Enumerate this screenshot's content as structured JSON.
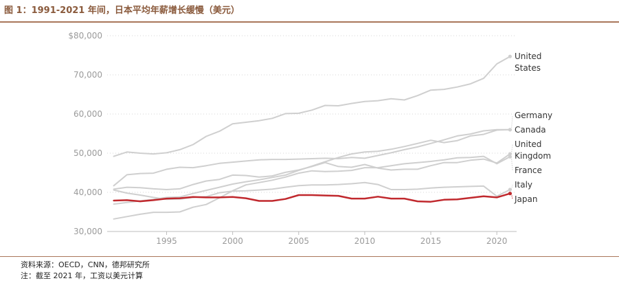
{
  "figure": {
    "title": "图 1：1991-2021 年间，日本平均年薪增长缓慢（美元）",
    "source": "资料来源：OECD，CNN，德邦研究所",
    "note": "注：截至 2021 年，工资以美元计算"
  },
  "colors": {
    "muted": "#cfcfcf",
    "japan": "#c0282d",
    "axis": "#bdbdbd",
    "tick": "#9a9a9a",
    "label": "#333333"
  },
  "chart_data": {
    "type": "line",
    "title": "",
    "xlabel": "",
    "ylabel": "",
    "xlim": [
      1990.5,
      2021.5
    ],
    "ylim": [
      30000,
      80000
    ],
    "grid": true,
    "y_ticks": [
      {
        "value": 30000,
        "label": "30,000"
      },
      {
        "value": 40000,
        "label": "40,000"
      },
      {
        "value": 50000,
        "label": "50,000"
      },
      {
        "value": 60000,
        "label": "60,000"
      },
      {
        "value": 70000,
        "label": "70,000"
      },
      {
        "value": 80000,
        "label": "$80,000"
      }
    ],
    "x_ticks": [
      {
        "value": 1995,
        "label": "1995"
      },
      {
        "value": 2000,
        "label": "2000"
      },
      {
        "value": 2005,
        "label": "2005"
      },
      {
        "value": 2010,
        "label": "2010"
      },
      {
        "value": 2015,
        "label": "2015"
      },
      {
        "value": 2020,
        "label": "2020"
      }
    ],
    "x": [
      1991,
      1992,
      1993,
      1994,
      1995,
      1996,
      1997,
      1998,
      1999,
      2000,
      2001,
      2002,
      2003,
      2004,
      2005,
      2006,
      2007,
      2008,
      2009,
      2010,
      2011,
      2012,
      2013,
      2014,
      2015,
      2016,
      2017,
      2018,
      2019,
      2020,
      2021
    ],
    "series": [
      {
        "name": "United States",
        "label_lines": [
          "United",
          "States"
        ],
        "highlight": false,
        "values": [
          49200,
          50300,
          50000,
          49800,
          50100,
          50900,
          52200,
          54300,
          55600,
          57500,
          57900,
          58300,
          58900,
          60100,
          60200,
          61000,
          62200,
          62100,
          62700,
          63200,
          63400,
          63900,
          63600,
          64700,
          66100,
          66300,
          66900,
          67700,
          69100,
          72800,
          74700
        ]
      },
      {
        "name": "Germany",
        "label_lines": [
          "Germany"
        ],
        "highlight": false,
        "values": [
          41700,
          44500,
          44800,
          44900,
          45900,
          46400,
          46300,
          46800,
          47400,
          47700,
          48000,
          48300,
          48400,
          48400,
          48500,
          48600,
          48700,
          48600,
          48900,
          48700,
          49400,
          50100,
          50900,
          51600,
          52500,
          53400,
          54400,
          54900,
          55700,
          56000,
          56000
        ]
      },
      {
        "name": "Canada",
        "label_lines": [
          "Canada"
        ],
        "highlight": false,
        "values": [
          37000,
          37400,
          37800,
          38200,
          38700,
          38800,
          39700,
          40500,
          41300,
          42100,
          42700,
          43200,
          43800,
          44400,
          45600,
          46700,
          47800,
          48900,
          49800,
          50300,
          50500,
          51000,
          51700,
          52500,
          53300,
          52700,
          53200,
          54400,
          54800,
          55900,
          56000
        ]
      },
      {
        "name": "United Kingdom",
        "label_lines": [
          "United",
          "Kingdom"
        ],
        "highlight": false,
        "values": [
          40800,
          41300,
          41200,
          40900,
          40700,
          40900,
          42000,
          42900,
          43300,
          44400,
          44300,
          43900,
          44200,
          45100,
          45700,
          46600,
          47600,
          46600,
          46400,
          47100,
          46200,
          45700,
          45900,
          45900,
          46800,
          47600,
          47600,
          48200,
          48500,
          47500,
          49800
        ]
      },
      {
        "name": "France",
        "label_lines": [
          "France"
        ],
        "highlight": false,
        "values": [
          33200,
          33800,
          34400,
          34900,
          34900,
          35000,
          36200,
          36900,
          38600,
          40400,
          41900,
          42500,
          43100,
          43900,
          44900,
          45500,
          45300,
          45400,
          45600,
          46300,
          46300,
          46800,
          47300,
          47600,
          47900,
          48300,
          48800,
          48900,
          49200,
          47300,
          49100
        ]
      },
      {
        "name": "Italy",
        "label_lines": [
          "Italy"
        ],
        "highlight": false,
        "values": [
          40600,
          39800,
          39300,
          38700,
          38200,
          38300,
          38700,
          38900,
          39900,
          40300,
          40400,
          40600,
          40800,
          41300,
          41700,
          41900,
          41900,
          42000,
          42200,
          42500,
          42000,
          40700,
          40700,
          40800,
          41100,
          41300,
          41400,
          41500,
          41600,
          39000,
          40700
        ]
      },
      {
        "name": "Japan",
        "label_lines": [
          "Japan"
        ],
        "highlight": true,
        "values": [
          37900,
          38000,
          37700,
          38000,
          38400,
          38500,
          38800,
          38700,
          38700,
          38800,
          38500,
          37800,
          37800,
          38300,
          39300,
          39300,
          39200,
          39100,
          38400,
          38400,
          38900,
          38400,
          38400,
          37700,
          37600,
          38100,
          38200,
          38600,
          39000,
          38700,
          39700
        ]
      }
    ]
  }
}
